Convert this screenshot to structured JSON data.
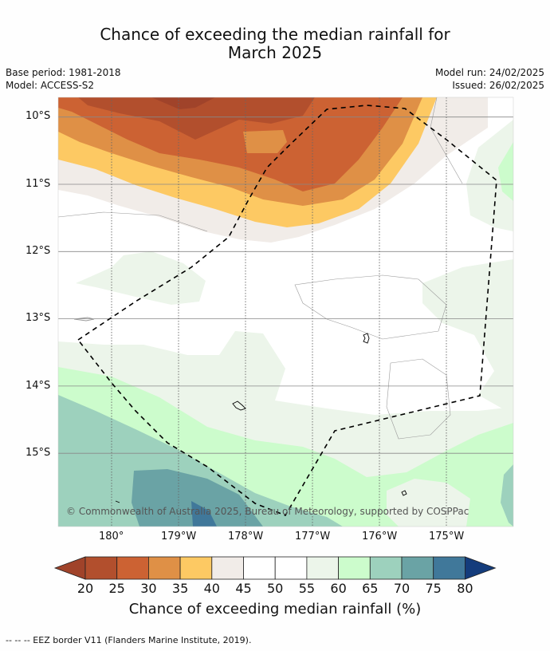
{
  "header": {
    "title_line1": "Chance of exceeding the median rainfall for",
    "title_line2": "March 2025",
    "base_period": "Base period: 1981-2018",
    "model": "Model: ACCESS-S2",
    "model_run": "Model run: 24/02/2025",
    "issued": "Issued: 26/02/2025"
  },
  "map": {
    "lat_labels": [
      "10°S",
      "11°S",
      "12°S",
      "13°S",
      "14°S",
      "15°S"
    ],
    "lon_labels": [
      "180°",
      "179°W",
      "178°W",
      "177°W",
      "176°W",
      "175°W"
    ],
    "copyright": "© Commonwealth of Australia 2025, Bureau of Meteorology, supported by COSPPac",
    "eez_line_color": "#000000"
  },
  "colorbar": {
    "ticks": [
      "20",
      "25",
      "30",
      "35",
      "40",
      "45",
      "50",
      "55",
      "60",
      "65",
      "70",
      "75",
      "80"
    ],
    "colors": [
      "#a0432a",
      "#b24f2d",
      "#cc6233",
      "#df9046",
      "#fdc963",
      "#f1ece8",
      "#ffffff",
      "#ffffff",
      "#ecf5ea",
      "#ccfccc",
      "#9dd1bd",
      "#6aa3a5",
      "#40789a",
      "#143c7c"
    ],
    "title": "Chance of exceeding median rainfall (%)"
  },
  "footer": {
    "legend": "--  --  -- EEZ border V11 (Flanders Marine Institute, 2019)."
  }
}
